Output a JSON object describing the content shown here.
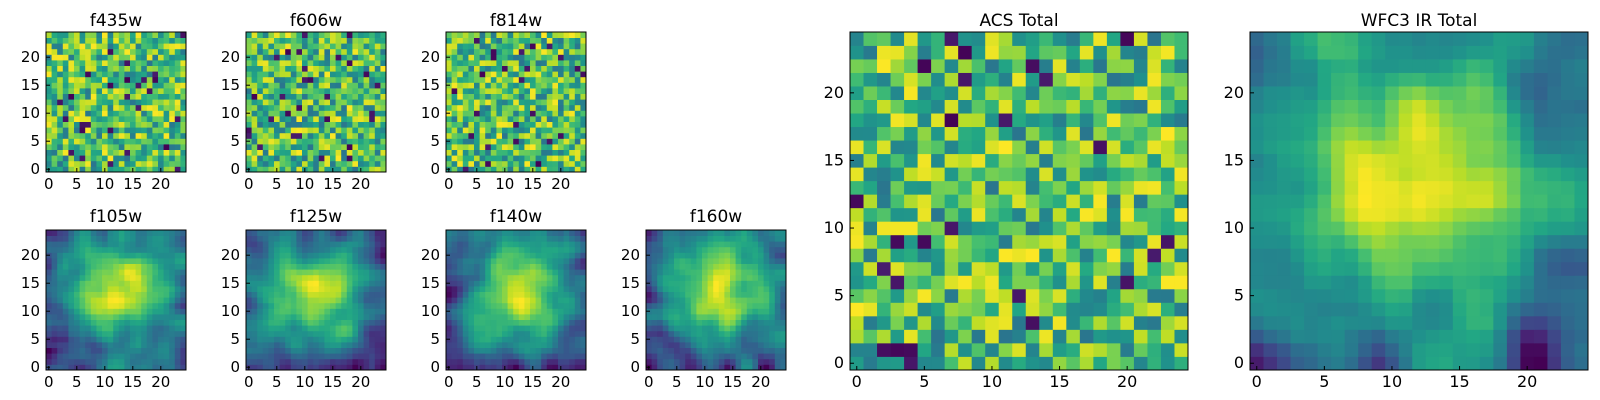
{
  "chart_data": {
    "type": "heatmap",
    "colormap": "viridis",
    "value_range": [
      0,
      1
    ],
    "grid": false,
    "panels": [
      {
        "id": "f435w",
        "title": "f435w",
        "size": 25,
        "xticks": [
          0,
          5,
          10,
          15,
          20
        ],
        "yticks": [
          0,
          5,
          10,
          15,
          20
        ],
        "texture": "noise",
        "seed": 11
      },
      {
        "id": "f606w",
        "title": "f606w",
        "size": 25,
        "xticks": [
          0,
          5,
          10,
          15,
          20
        ],
        "yticks": [
          0,
          5,
          10,
          15,
          20
        ],
        "texture": "noise",
        "seed": 23
      },
      {
        "id": "f814w",
        "title": "f814w",
        "size": 25,
        "xticks": [
          0,
          5,
          10,
          15,
          20
        ],
        "yticks": [
          0,
          5,
          10,
          15,
          20
        ],
        "texture": "noise",
        "seed": 37
      },
      {
        "id": "f105w",
        "title": "f105w",
        "size": 25,
        "xticks": [
          0,
          5,
          10,
          15,
          20
        ],
        "yticks": [
          0,
          5,
          10,
          15,
          20
        ],
        "texture": "smooth",
        "seed": 41
      },
      {
        "id": "f125w",
        "title": "f125w",
        "size": 25,
        "xticks": [
          0,
          5,
          10,
          15,
          20
        ],
        "yticks": [
          0,
          5,
          10,
          15,
          20
        ],
        "texture": "smooth",
        "seed": 53
      },
      {
        "id": "f140w",
        "title": "f140w",
        "size": 25,
        "xticks": [
          0,
          5,
          10,
          15,
          20
        ],
        "yticks": [
          0,
          5,
          10,
          15,
          20
        ],
        "texture": "smooth",
        "seed": 67
      },
      {
        "id": "f160w",
        "title": "f160w",
        "size": 25,
        "xticks": [
          0,
          5,
          10,
          15,
          20
        ],
        "yticks": [
          0,
          5,
          10,
          15,
          20
        ],
        "texture": "smooth",
        "seed": 79
      },
      {
        "id": "acs-total",
        "title": "ACS Total",
        "size": 25,
        "xticks": [
          0,
          5,
          10,
          15,
          20
        ],
        "yticks": [
          0,
          5,
          10,
          15,
          20
        ],
        "texture": "noise",
        "seed": 97
      },
      {
        "id": "wfc3-ir-total",
        "title": "WFC3 IR Total",
        "size": 25,
        "xticks": [
          0,
          5,
          10,
          15,
          20
        ],
        "yticks": [
          0,
          5,
          10,
          15,
          20
        ],
        "texture": "smooth",
        "seed": 131
      }
    ]
  }
}
